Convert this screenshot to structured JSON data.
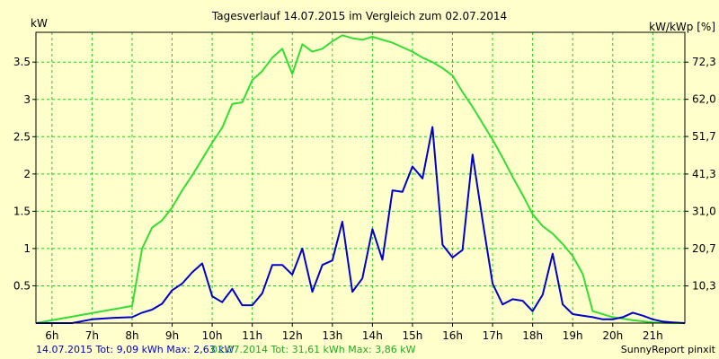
{
  "chart_data": {
    "type": "line",
    "title": "Tagesverlauf 14.07.2015 im Vergleich zum 02.07.2014",
    "ylabel_left": "kW",
    "ylabel_right": "kW/kWp [%]",
    "x_ticks": [
      "6h",
      "7h",
      "8h",
      "9h",
      "10h",
      "11h",
      "12h",
      "13h",
      "14h",
      "15h",
      "16h",
      "17h",
      "18h",
      "19h",
      "20h",
      "21h"
    ],
    "xlim": [
      5.6,
      21.8
    ],
    "ylim": [
      0,
      3.9
    ],
    "y_ticks": [
      0.5,
      1,
      1.5,
      2,
      2.5,
      3,
      3.5
    ],
    "y_tick_labels": [
      "0.5",
      "1",
      "1.5",
      "2",
      "2.5",
      "3",
      "3.5"
    ],
    "y2_ticks": [
      10.3,
      20.7,
      31.0,
      41.3,
      51.7,
      62.0,
      72.3
    ],
    "y2_tick_labels": [
      "10,3",
      "20,7",
      "31,0",
      "41,3",
      "51,7",
      "62,0",
      "72,3"
    ],
    "grid": true,
    "series": [
      {
        "name": "14.07.2015",
        "color": "#0000cc",
        "x": [
          5.6,
          6.5,
          7.0,
          7.5,
          8.0,
          8.25,
          8.5,
          8.75,
          9.0,
          9.25,
          9.5,
          9.75,
          10.0,
          10.25,
          10.5,
          10.75,
          11.0,
          11.25,
          11.5,
          11.75,
          12.0,
          12.25,
          12.5,
          12.75,
          13.0,
          13.25,
          13.5,
          13.75,
          14.0,
          14.25,
          14.5,
          14.75,
          15.0,
          15.25,
          15.5,
          15.75,
          16.0,
          16.25,
          16.5,
          16.75,
          17.0,
          17.25,
          17.5,
          17.75,
          18.0,
          18.25,
          18.5,
          18.75,
          19.0,
          19.25,
          19.5,
          19.75,
          20.0,
          20.25,
          20.5,
          20.75,
          21.0,
          21.25,
          21.5,
          21.8
        ],
        "values": [
          0,
          0,
          0.05,
          0.07,
          0.08,
          0.14,
          0.18,
          0.26,
          0.44,
          0.53,
          0.68,
          0.8,
          0.36,
          0.28,
          0.46,
          0.24,
          0.24,
          0.4,
          0.78,
          0.78,
          0.65,
          1.0,
          0.42,
          0.78,
          0.84,
          1.36,
          0.42,
          0.6,
          1.26,
          0.85,
          1.78,
          1.76,
          2.1,
          1.94,
          2.63,
          1.05,
          0.88,
          0.98,
          2.26,
          1.38,
          0.53,
          0.25,
          0.32,
          0.3,
          0.16,
          0.38,
          0.93,
          0.25,
          0.12,
          0.1,
          0.08,
          0.05,
          0.05,
          0.08,
          0.14,
          0.1,
          0.05,
          0.02,
          0.01,
          0
        ]
      },
      {
        "name": "02.07.2014",
        "color": "#33dd33",
        "x": [
          5.6,
          8.0,
          8.25,
          8.5,
          8.75,
          9.0,
          9.25,
          9.5,
          9.75,
          10.0,
          10.25,
          10.5,
          10.75,
          11.0,
          11.25,
          11.5,
          11.75,
          12.0,
          12.25,
          12.5,
          12.75,
          13.0,
          13.25,
          13.5,
          13.75,
          14.0,
          14.25,
          14.5,
          14.75,
          15.0,
          15.25,
          15.5,
          15.75,
          16.0,
          16.25,
          16.5,
          16.75,
          17.0,
          17.25,
          17.5,
          17.75,
          18.0,
          18.25,
          18.5,
          18.75,
          19.0,
          19.25,
          19.5,
          20.0,
          20.5,
          21.0,
          21.5,
          21.8
        ],
        "values": [
          0,
          0.23,
          1.0,
          1.28,
          1.38,
          1.55,
          1.78,
          1.98,
          2.2,
          2.42,
          2.62,
          2.94,
          2.96,
          3.26,
          3.38,
          3.56,
          3.68,
          3.34,
          3.74,
          3.64,
          3.68,
          3.78,
          3.86,
          3.82,
          3.8,
          3.84,
          3.8,
          3.76,
          3.7,
          3.64,
          3.56,
          3.5,
          3.42,
          3.32,
          3.1,
          2.9,
          2.68,
          2.46,
          2.22,
          1.96,
          1.72,
          1.46,
          1.3,
          1.2,
          1.06,
          0.9,
          0.66,
          0.16,
          0.08,
          0.04,
          0.01,
          0.0,
          0.0
        ]
      }
    ]
  },
  "footer": {
    "series1_text": "14.07.2015 Tot: 9,09 kWh Max: 2,63 kW",
    "series2_text": "02.07.2014 Tot: 31,61 kWh Max: 3,86 kW",
    "credit": "SunnyReport pinxit"
  }
}
